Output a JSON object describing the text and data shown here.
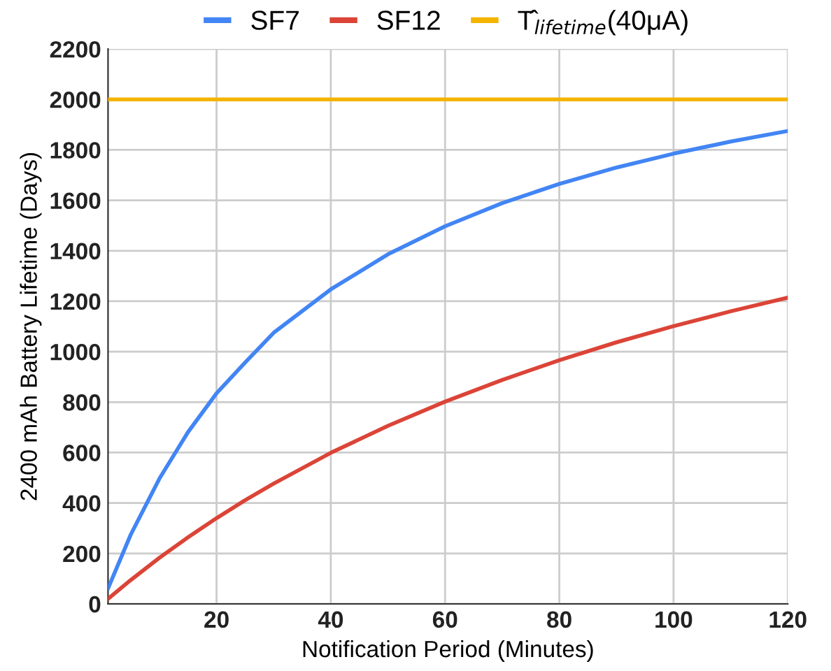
{
  "chart_data": {
    "type": "line",
    "xlabel": "Notification Period (Minutes)",
    "ylabel": "2400 mAh Battery Lifetime (Days)",
    "series": [
      {
        "name": "SF7",
        "color": "#4285f4",
        "x": [
          1,
          5,
          10,
          15,
          20,
          25,
          30,
          40,
          50,
          60,
          70,
          80,
          90,
          100,
          110,
          120
        ],
        "values": [
          61,
          276,
          497,
          681,
          835,
          957,
          1075,
          1247,
          1386,
          1497,
          1589,
          1665,
          1730,
          1785,
          1833,
          1875
        ]
      },
      {
        "name": "SF12",
        "color": "#db4437",
        "x": [
          1,
          5,
          10,
          15,
          20,
          25,
          30,
          40,
          50,
          60,
          70,
          80,
          90,
          100,
          110,
          120
        ],
        "values": [
          20,
          95,
          183,
          264,
          340,
          411,
          477,
          599,
          706,
          802,
          888,
          966,
          1037,
          1101,
          1160,
          1214
        ]
      }
    ],
    "ref_lines": [
      {
        "axis": "y",
        "value": 2000,
        "label": "T̂$_{lifetime}$(40μA)",
        "color": "#f4b400"
      }
    ],
    "xlim": [
      1,
      120
    ],
    "xticks": [
      20,
      40,
      60,
      80,
      100,
      120
    ],
    "ylim": [
      0,
      2200
    ],
    "yticks": [
      0,
      200,
      400,
      600,
      800,
      1000,
      1200,
      1400,
      1600,
      1800,
      2000,
      2200
    ],
    "grid": true,
    "legend": "top",
    "marker": "none",
    "line_style": "solid"
  }
}
